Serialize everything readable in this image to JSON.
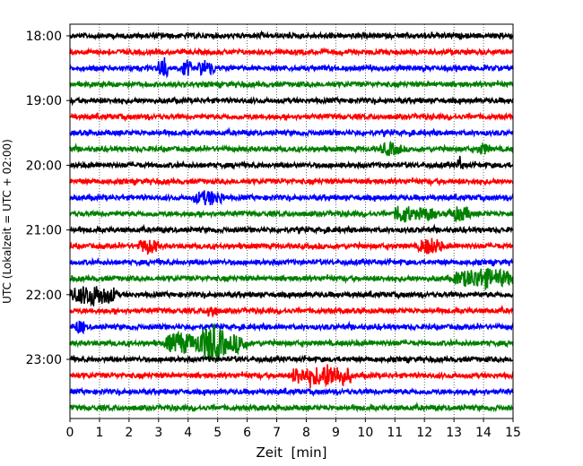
{
  "chart_data": {
    "type": "line",
    "title": "",
    "xlabel": "Zeit  [min]",
    "ylabel": "UTC (Lokalzeit = UTC + 02:00)",
    "xlim": [
      0,
      15
    ],
    "x_ticks": [
      0,
      1,
      2,
      3,
      4,
      5,
      6,
      7,
      8,
      9,
      10,
      11,
      12,
      13,
      14,
      15
    ],
    "row_interval_minutes": 15,
    "start_time": "18:00",
    "hour_labels": [
      "18:00",
      "19:00",
      "20:00",
      "21:00",
      "22:00",
      "23:00"
    ],
    "grid": "vertical dotted at each minute",
    "colors": [
      "#000000",
      "#ff0000",
      "#0000ff",
      "#008000"
    ],
    "traces": [
      {
        "time": "18:00",
        "color": "#000000",
        "events": []
      },
      {
        "time": "18:15",
        "color": "#ff0000",
        "events": []
      },
      {
        "time": "18:30",
        "color": "#0000ff",
        "events": [
          {
            "start_min": 3.0,
            "end_min": 3.3,
            "amplitude": 0.6
          },
          {
            "start_min": 3.8,
            "end_min": 4.1,
            "amplitude": 0.35
          },
          {
            "start_min": 4.3,
            "end_min": 4.9,
            "amplitude": 0.3
          }
        ]
      },
      {
        "time": "18:45",
        "color": "#008000",
        "events": []
      },
      {
        "time": "19:00",
        "color": "#000000",
        "events": []
      },
      {
        "time": "19:15",
        "color": "#ff0000",
        "events": []
      },
      {
        "time": "19:30",
        "color": "#0000ff",
        "events": []
      },
      {
        "time": "19:45",
        "color": "#008000",
        "events": [
          {
            "start_min": 10.5,
            "end_min": 11.2,
            "amplitude": 0.25
          },
          {
            "start_min": 13.8,
            "end_min": 14.2,
            "amplitude": 0.2
          }
        ]
      },
      {
        "time": "20:00",
        "color": "#000000",
        "events": [
          {
            "start_min": 13.1,
            "end_min": 13.3,
            "amplitude": 0.25
          }
        ]
      },
      {
        "time": "20:15",
        "color": "#ff0000",
        "events": []
      },
      {
        "time": "20:30",
        "color": "#0000ff",
        "events": [
          {
            "start_min": 4.2,
            "end_min": 5.2,
            "amplitude": 0.3
          }
        ]
      },
      {
        "time": "20:45",
        "color": "#008000",
        "events": [
          {
            "start_min": 11.0,
            "end_min": 11.6,
            "amplitude": 0.4
          },
          {
            "start_min": 11.6,
            "end_min": 12.4,
            "amplitude": 0.25
          },
          {
            "start_min": 12.8,
            "end_min": 13.6,
            "amplitude": 0.3
          }
        ]
      },
      {
        "time": "21:00",
        "color": "#000000",
        "events": []
      },
      {
        "time": "21:15",
        "color": "#ff0000",
        "events": [
          {
            "start_min": 2.3,
            "end_min": 3.0,
            "amplitude": 0.3
          },
          {
            "start_min": 11.8,
            "end_min": 12.6,
            "amplitude": 0.35
          }
        ]
      },
      {
        "time": "21:30",
        "color": "#0000ff",
        "events": []
      },
      {
        "time": "21:45",
        "color": "#008000",
        "events": [
          {
            "start_min": 13.0,
            "end_min": 15.0,
            "amplitude": 0.45
          }
        ]
      },
      {
        "time": "22:00",
        "color": "#000000",
        "events": [
          {
            "start_min": 0.0,
            "end_min": 1.6,
            "amplitude": 0.45
          }
        ]
      },
      {
        "time": "22:15",
        "color": "#ff0000",
        "events": [
          {
            "start_min": 4.6,
            "end_min": 5.0,
            "amplitude": 0.25
          }
        ]
      },
      {
        "time": "22:30",
        "color": "#0000ff",
        "events": [
          {
            "start_min": 0.2,
            "end_min": 0.5,
            "amplitude": 0.3
          }
        ]
      },
      {
        "time": "22:45",
        "color": "#008000",
        "events": [
          {
            "start_min": 3.2,
            "end_min": 4.3,
            "amplitude": 0.5
          },
          {
            "start_min": 4.3,
            "end_min": 5.3,
            "amplitude": 0.9
          },
          {
            "start_min": 5.3,
            "end_min": 6.0,
            "amplitude": 0.4
          }
        ]
      },
      {
        "time": "23:00",
        "color": "#000000",
        "events": []
      },
      {
        "time": "23:15",
        "color": "#ff0000",
        "events": [
          {
            "start_min": 7.5,
            "end_min": 8.0,
            "amplitude": 0.4
          },
          {
            "start_min": 8.0,
            "end_min": 9.5,
            "amplitude": 0.5
          }
        ]
      },
      {
        "time": "23:30",
        "color": "#0000ff",
        "events": []
      },
      {
        "time": "23:45",
        "color": "#008000",
        "events": []
      }
    ]
  }
}
